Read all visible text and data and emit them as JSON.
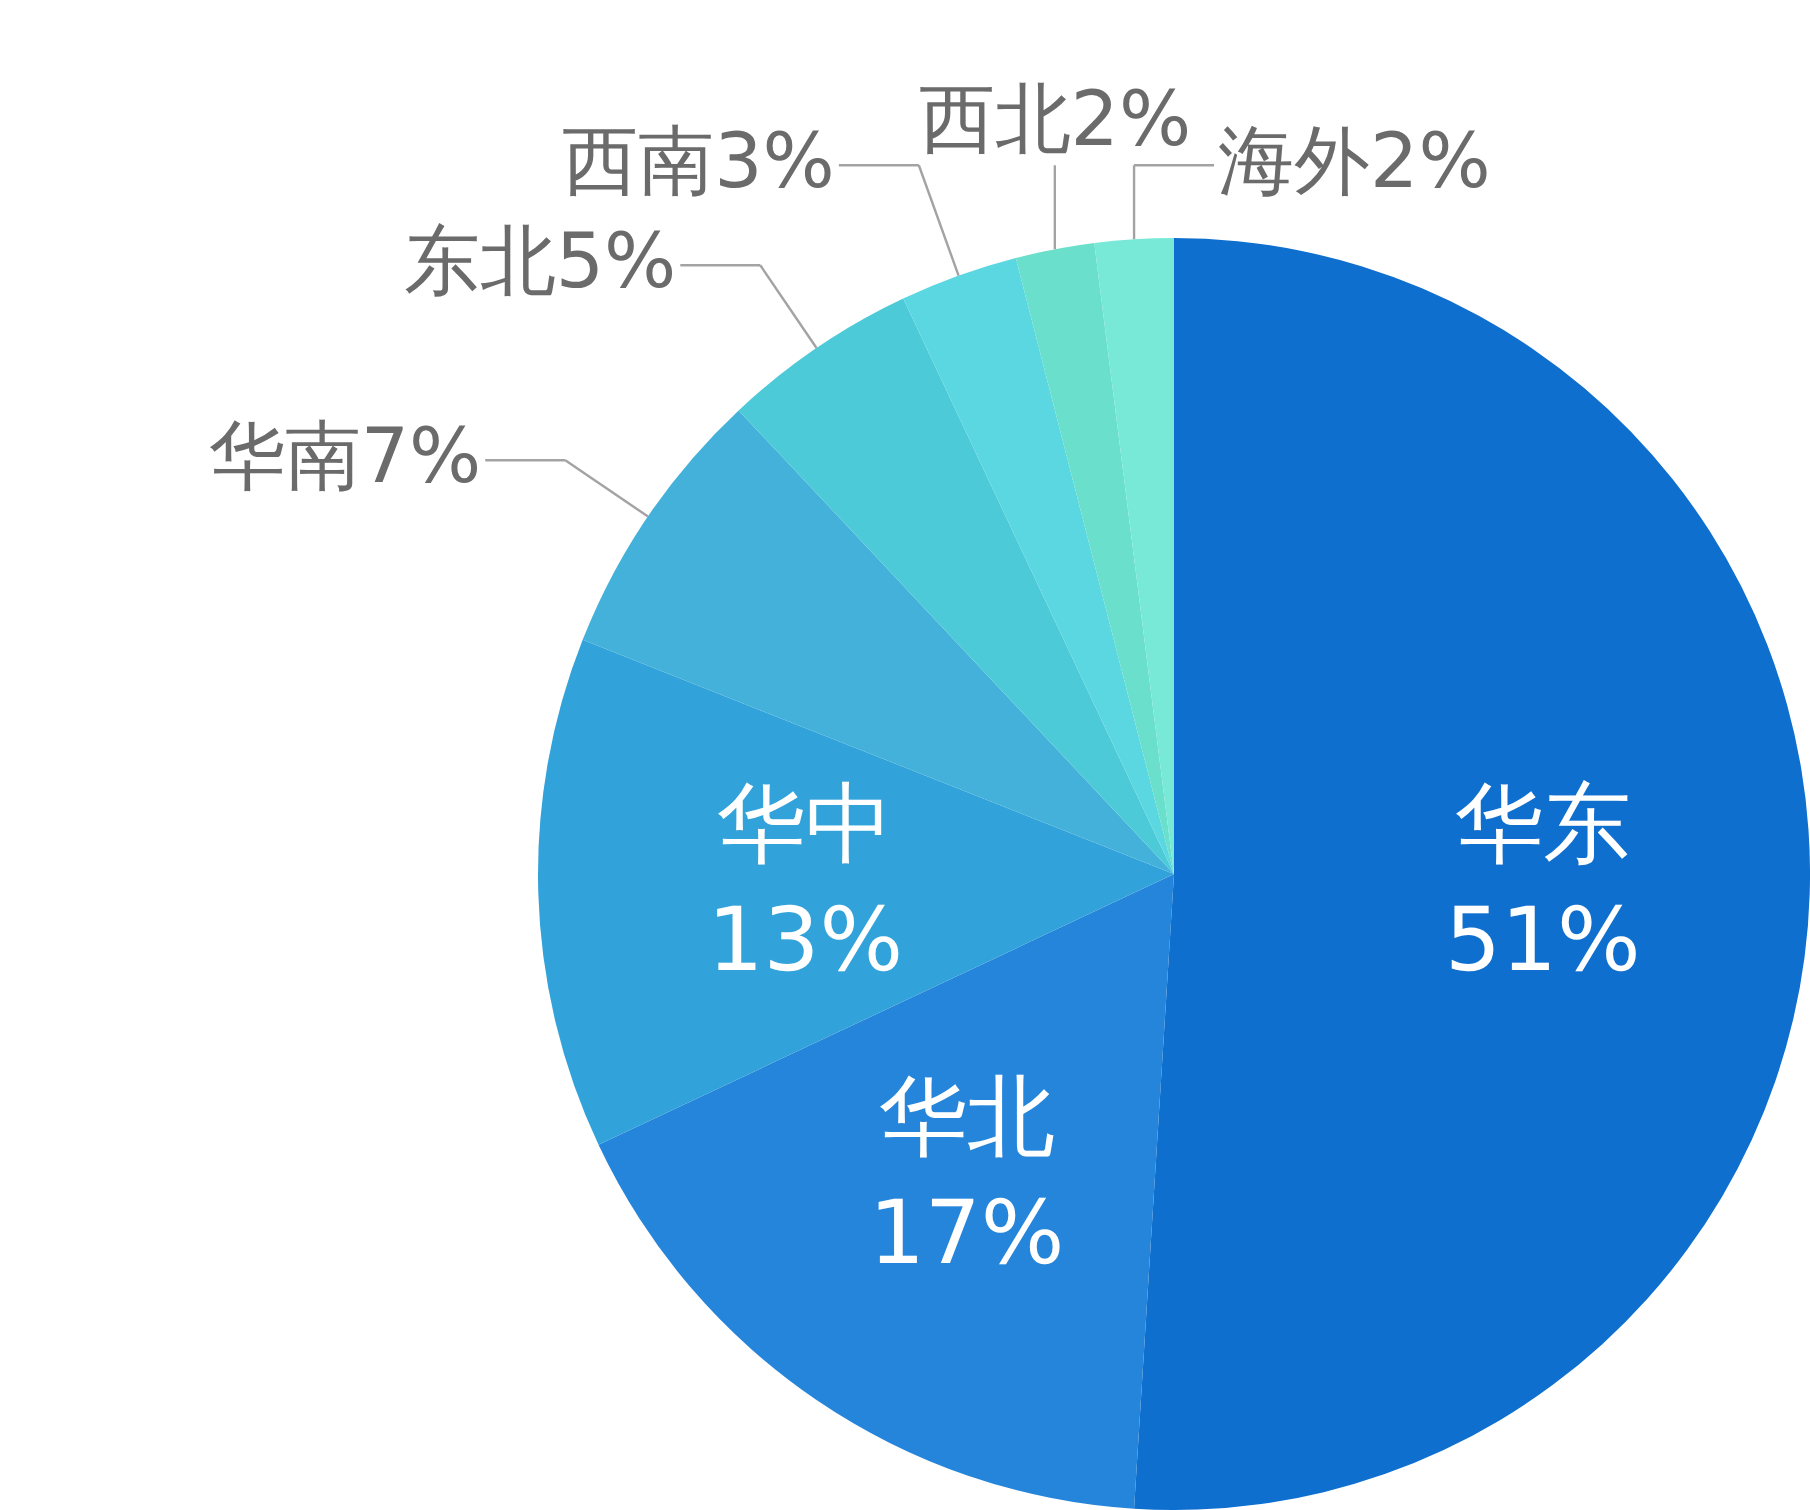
{
  "chart_data": {
    "type": "pie",
    "categories": [
      "华东",
      "华北",
      "华中",
      "华南",
      "东北",
      "西南",
      "西北",
      "海外"
    ],
    "values": [
      51,
      17,
      13,
      7,
      5,
      3,
      2,
      2
    ],
    "colors": [
      "#0f6fcf",
      "#2585db",
      "#31a2da",
      "#43b1da",
      "#4dcad8",
      "#5ad7e0",
      "#6adfcb",
      "#77e9d6"
    ],
    "value_labels": [
      "51%",
      "17%",
      "13%",
      "7%",
      "5%",
      "3%",
      "2%",
      "2%"
    ]
  }
}
